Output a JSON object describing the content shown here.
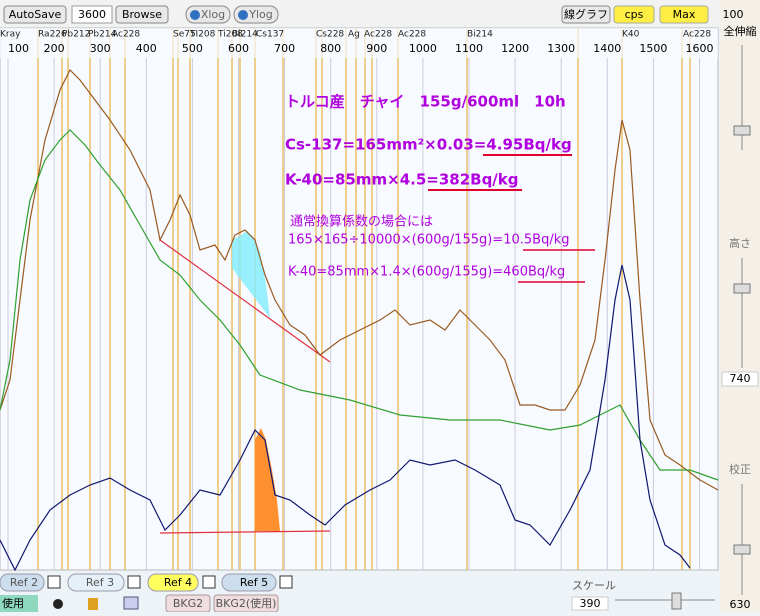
{
  "toolbar": {
    "autosave": "AutoSave",
    "count": "3600",
    "browse": "Browse",
    "xlog": "Xlog",
    "ylog": "Ylog",
    "line_graph": "線グラフ",
    "cps": "cps",
    "max": "Max"
  },
  "isotope_labels": [
    "Kray",
    "Ra226",
    "Pb212",
    "Pb214",
    "Ac228",
    "Se75",
    "TI208",
    "Ti208",
    "Bi214",
    "Cs137",
    "Cs228",
    "Ag",
    "Ac228",
    "Ac228",
    "Bi214",
    "K40",
    "Ac228"
  ],
  "energy_ticks": [
    100,
    200,
    300,
    400,
    500,
    600,
    700,
    800,
    900,
    1000,
    1100,
    1200,
    1300,
    1400,
    1500,
    1600
  ],
  "annotations": [
    "トルコ産　チャイ　155g/600ml　10h",
    "Cs-137=165mm²×0.03=4.95Bq/kg",
    "K-40=85mm×4.5=382Bq/kg",
    "通常換算係数の場合には",
    "165×165÷10000×(600g/155g)=10.5Bq/kg",
    "K-40=85mm×1.4×(600g/155g)=460Bq/kg"
  ],
  "side_panel": {
    "top": "100",
    "zoom_all": "全伸縮",
    "height": "高さ",
    "height_value": "740",
    "calibrate": "校正",
    "calibrate_value": "630"
  },
  "bottom": {
    "refs": [
      "Ref 2",
      "Ref 3",
      "Ref 4",
      "Ref 5"
    ],
    "scale": "スケール",
    "scale_value": "390",
    "use": "使用",
    "bkg2": "BKG2",
    "bkg2_use": "BKG2(使用)"
  }
}
